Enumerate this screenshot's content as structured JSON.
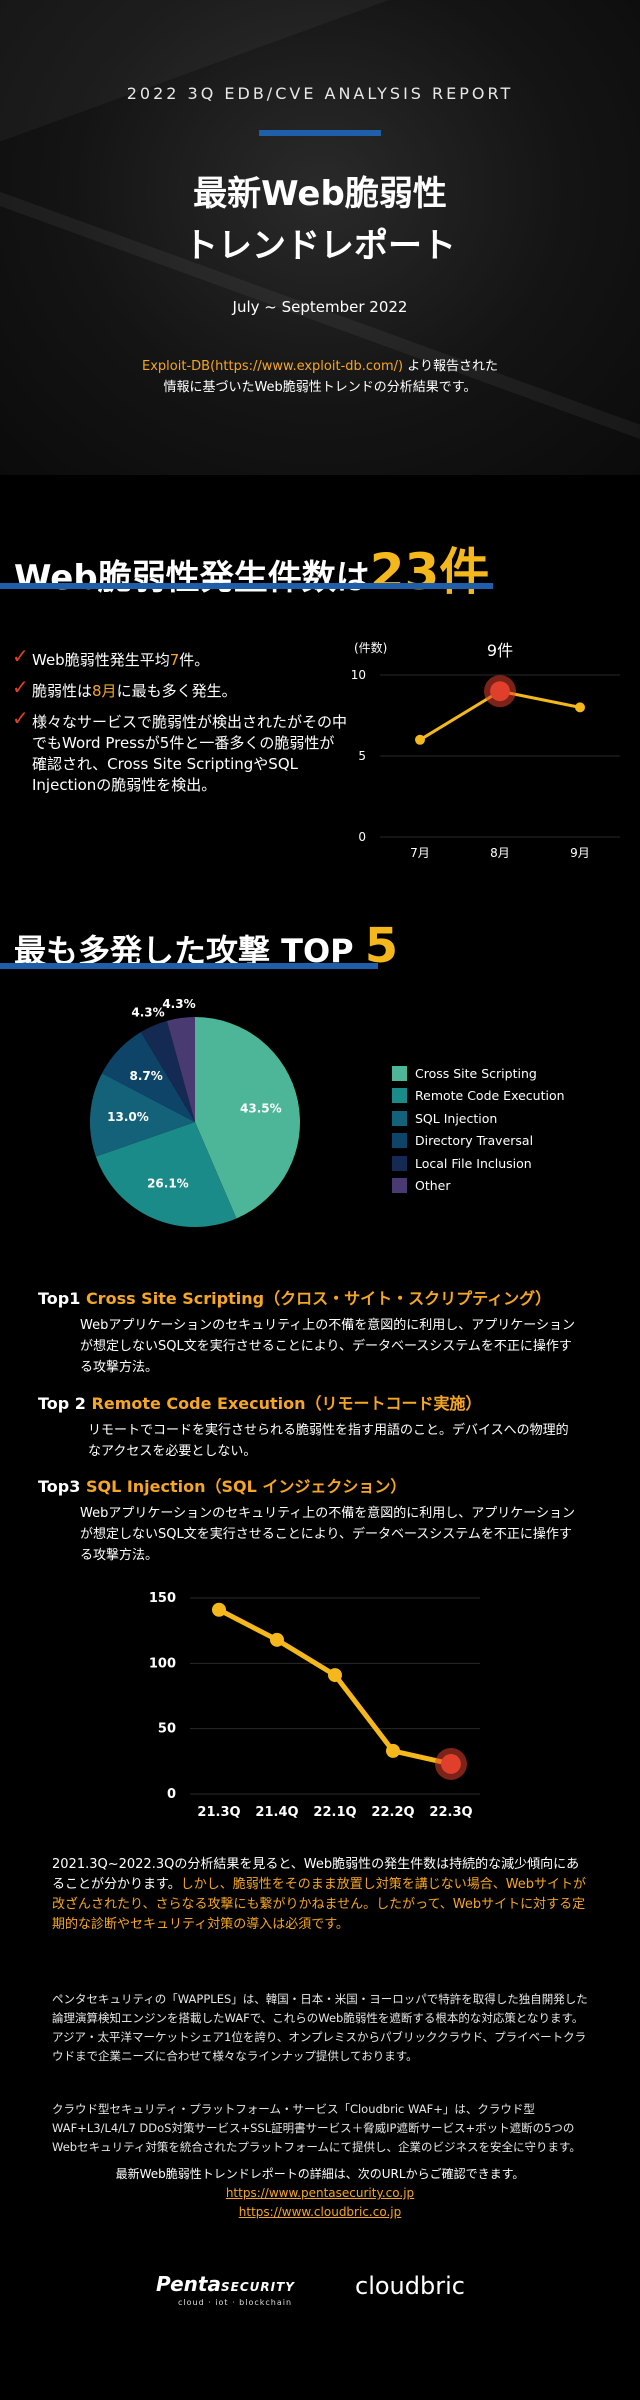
{
  "hero": {
    "kicker": "2022 3Q EDB/CVE ANALYSIS REPORT",
    "title_line1": "最新Web脆弱性",
    "title_line2": "トレンドレポート",
    "date_range": "July ~ September 2022",
    "intro_source": "Exploit-DB(https://www.exploit-db.com/)",
    "intro_line1_rest": " より報告された",
    "intro_line2": "情報に基づいたWeb脆弱性トレンドの分析結果です。"
  },
  "section1": {
    "title_prefix": "Web脆弱性発生件数は",
    "title_big": "23件",
    "bullets": [
      {
        "pre": "Web脆弱性発生平均",
        "hl": "7",
        "post": "件。"
      },
      {
        "pre": " 脆弱性は",
        "hl": "8月",
        "post": "に最も多く発生。"
      },
      {
        "pre": "様々なサービスで脆弱性が検出されたがその中でもWord Pressが5件と一番多くの脆弱性が確認され、Cross Site ScriptingやSQL Injectionの脆弱性を検出。",
        "hl": "",
        "post": ""
      }
    ],
    "check_icon": "check-icon",
    "accent_color": "#f5a623",
    "check_color": "#e0402b"
  },
  "section2": {
    "title_prefix": "最も多発した攻撃 TOP",
    "title_big": "5"
  },
  "attacks": [
    {
      "rank": "Top1 ",
      "name": "Cross Site Scripting（クロス・サイト・スクリプティング）",
      "desc": "Webアプリケーションのセキュリティ上の不備を意図的に利用し、アプリケーションが想定しないSQL文を実行させることにより、データベースシステムを不正に操作する攻撃方法。"
    },
    {
      "rank": "Top 2 ",
      "name": "Remote Code Execution（リモートコード実施）",
      "desc": "リモートでコードを実行させられる脆弱性を指す用語のこと。デバイスへの物理的なアクセスを必要としない。"
    },
    {
      "rank": "Top3 ",
      "name": "SQL Injection（SQL インジェクション）",
      "desc": "Webアプリケーションのセキュリティ上の不備を意図的に利用し、アプリケーションが想定しないSQL文を実行させることにより、データベースシステムを不正に操作する攻撃方法。"
    }
  ],
  "summary": {
    "normal": "2021.3Q~2022.3Qの分析結果を見ると、Web脆弱性の発生件数は持続的な減少傾向にあることが分かります。",
    "highlight": "しかし、脆弱性をそのまま放置し対策を講じない場合、Webサイトが改ざんされたり、さらなる攻撃にも繋がりかねません。したがって、Webサイトに対する定期的な診断やセキュリティ対策の導入は必須です。"
  },
  "company": {
    "para1": "ペンタセキュリティの「WAPPLES」は、韓国・日本・米国・ヨーロッパで特許を取得した独自開発した論理演算検知エンジンを搭載したWAFで、これらのWeb脆弱性を遮断する根本的な対応策となります。アジア・太平洋マーケットシェア1位を誇り、オンプレミスからパブリッククラウド、プライベートクラウドまで企業ニーズに合わせて様々なラインナップ提供しております。",
    "para2": "クラウド型セキュリティ・プラットフォーム・サービス「Cloudbric WAF+」は、クラウド型WAF+L3/L4/L7 DDoS対策サービス+SSL証明書サービス＋脅威IP遮断サービス+ボット遮断の5つのWebセキュリティ対策を統合されたプラットフォームにて提供し、企業のビジネスを安全に守ります。"
  },
  "footer": {
    "text": "最新Web脆弱性トレンドレポートの詳細は、次のURLからご確認できます。",
    "link1": "https://www.pentasecurity.co.jp",
    "link2": "https://www.cloudbric.co.jp",
    "logo1_main": "Penta",
    "logo1_sec": "SECURITY",
    "logo1_sub": "cloud · iot · blockchain",
    "logo2": "cloudbric"
  },
  "chart_data": [
    {
      "type": "line",
      "ylabel": "(件数)",
      "categories": [
        "7月",
        "8月",
        "9月"
      ],
      "values": [
        6,
        9,
        8
      ],
      "ylim": [
        0,
        10
      ],
      "yticks": [
        0,
        5,
        10
      ],
      "annotation": "9件",
      "highlight_index": 1,
      "grid": true,
      "line_color": "#f5b81c",
      "highlight_color": "#e0402b"
    },
    {
      "type": "pie",
      "slices": [
        {
          "label": "Cross Site Scripting",
          "value": 43.5,
          "text": "43.5%",
          "color": "#4db699"
        },
        {
          "label": "Remote Code Execution",
          "value": 26.1,
          "text": "26.1%",
          "color": "#1a8b88"
        },
        {
          "label": "SQL Injection",
          "value": 13.0,
          "text": "13.0%",
          "color": "#13627a"
        },
        {
          "label": "Directory Traversal",
          "value": 8.7,
          "text": "8.7%",
          "color": "#0e4468"
        },
        {
          "label": "Local File Inclusion",
          "value": 4.3,
          "text": "4.3%",
          "color": "#142a52"
        },
        {
          "label": "Other",
          "value": 4.3,
          "text": "4.3%",
          "color": "#4a3a72"
        }
      ],
      "legend": "right"
    },
    {
      "type": "line",
      "categories": [
        "21.3Q",
        "21.4Q",
        "22.1Q",
        "22.2Q",
        "22.3Q"
      ],
      "values": [
        141,
        118,
        91,
        33,
        23
      ],
      "ylim": [
        0,
        150
      ],
      "yticks": [
        0,
        50,
        100,
        150
      ],
      "highlight_index": 4,
      "grid": true,
      "line_color": "#f5b81c",
      "highlight_color": "#e0402b"
    }
  ]
}
